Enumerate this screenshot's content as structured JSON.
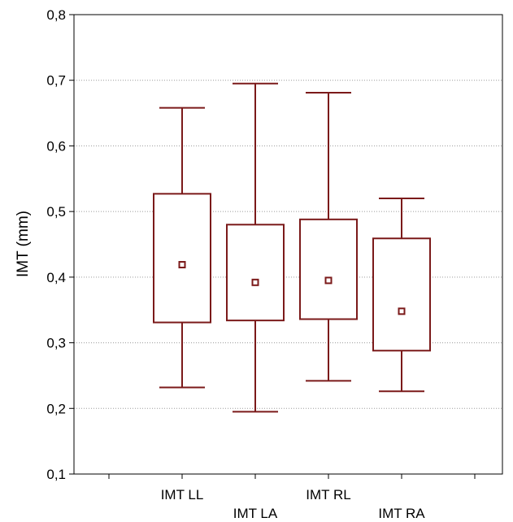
{
  "chart_data": {
    "type": "box",
    "ylabel": "IMT (mm)",
    "xlabel": "",
    "title": "",
    "ylim": [
      0.1,
      0.8
    ],
    "yticks": [
      "0,1",
      "0,2",
      "0,3",
      "0,4",
      "0,5",
      "0,6",
      "0,7",
      "0,8"
    ],
    "grid": "horizontal dotted",
    "color": "#7b1a1a",
    "categories": [
      "IMT LL",
      "IMT LA",
      "IMT RL",
      "IMT RA"
    ],
    "boxes": [
      {
        "whisker_high": 0.658,
        "q3": 0.527,
        "mean": 0.419,
        "q1": 0.331,
        "whisker_low": 0.232
      },
      {
        "whisker_high": 0.695,
        "q3": 0.48,
        "mean": 0.392,
        "q1": 0.334,
        "whisker_low": 0.195
      },
      {
        "whisker_high": 0.681,
        "q3": 0.488,
        "mean": 0.395,
        "q1": 0.336,
        "whisker_low": 0.242
      },
      {
        "whisker_high": 0.52,
        "q3": 0.459,
        "mean": 0.348,
        "q1": 0.288,
        "whisker_low": 0.226
      }
    ]
  }
}
